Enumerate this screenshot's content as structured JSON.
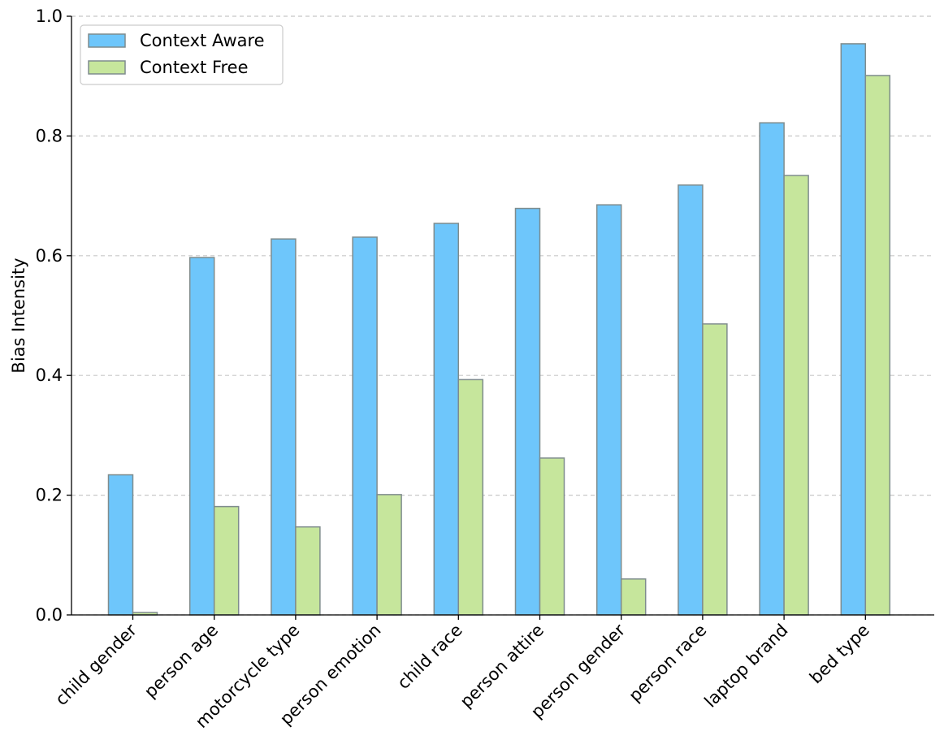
{
  "chart_data": {
    "type": "bar",
    "title": "",
    "xlabel": "",
    "ylabel": "Bias Intensity",
    "ylim": [
      0,
      1.0
    ],
    "yticks": [
      "0.0",
      "0.2",
      "0.4",
      "0.6",
      "0.8",
      "1.0"
    ],
    "grid": "horizontal dashed",
    "legend_position": "top-left",
    "categories": [
      "child gender",
      "person age",
      "motorcycle type",
      "person emotion",
      "child race",
      "person attire",
      "person gender",
      "person race",
      "laptop brand",
      "bed type"
    ],
    "series": [
      {
        "name": "Context Aware",
        "color": "#6ec6fb",
        "values": [
          0.234,
          0.597,
          0.628,
          0.631,
          0.654,
          0.679,
          0.685,
          0.718,
          0.822,
          0.954
        ]
      },
      {
        "name": "Context Free",
        "color": "#c6e69c",
        "values": [
          0.004,
          0.181,
          0.147,
          0.201,
          0.393,
          0.262,
          0.06,
          0.486,
          0.734,
          0.901
        ]
      }
    ],
    "bar_edge_color": "#7f8c8d"
  }
}
